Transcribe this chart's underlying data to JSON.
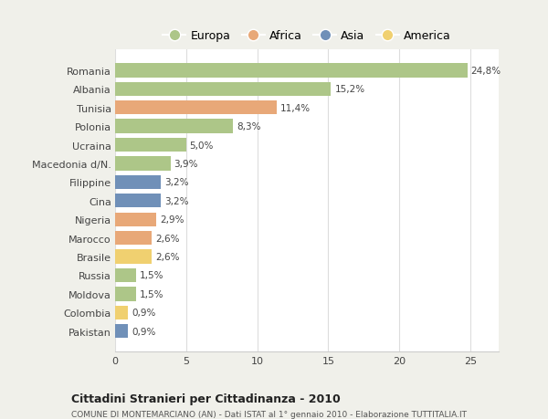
{
  "categories": [
    "Romania",
    "Albania",
    "Tunisia",
    "Polonia",
    "Ucraina",
    "Macedonia d/N.",
    "Filippine",
    "Cina",
    "Nigeria",
    "Marocco",
    "Brasile",
    "Russia",
    "Moldova",
    "Colombia",
    "Pakistan"
  ],
  "values": [
    24.8,
    15.2,
    11.4,
    8.3,
    5.0,
    3.9,
    3.2,
    3.2,
    2.9,
    2.6,
    2.6,
    1.5,
    1.5,
    0.9,
    0.9
  ],
  "labels": [
    "24,8%",
    "15,2%",
    "11,4%",
    "8,3%",
    "5,0%",
    "3,9%",
    "3,2%",
    "3,2%",
    "2,9%",
    "2,6%",
    "2,6%",
    "1,5%",
    "1,5%",
    "0,9%",
    "0,9%"
  ],
  "colors": [
    "#adc688",
    "#adc688",
    "#e8a878",
    "#adc688",
    "#adc688",
    "#adc688",
    "#7090b8",
    "#7090b8",
    "#e8a878",
    "#e8a878",
    "#f0d070",
    "#adc688",
    "#adc688",
    "#f0d070",
    "#7090b8"
  ],
  "legend_labels": [
    "Europa",
    "Africa",
    "Asia",
    "America"
  ],
  "legend_colors": [
    "#adc688",
    "#e8a878",
    "#7090b8",
    "#f0d070"
  ],
  "title": "Cittadini Stranieri per Cittadinanza - 2010",
  "subtitle": "COMUNE DI MONTEMARCIANO (AN) - Dati ISTAT al 1° gennaio 2010 - Elaborazione TUTTITALIA.IT",
  "xlim": [
    0,
    27
  ],
  "xticks": [
    0,
    5,
    10,
    15,
    20,
    25
  ],
  "background_color": "#f0f0ea",
  "plot_background": "#ffffff",
  "grid_color": "#dddddd",
  "bar_height": 0.75
}
